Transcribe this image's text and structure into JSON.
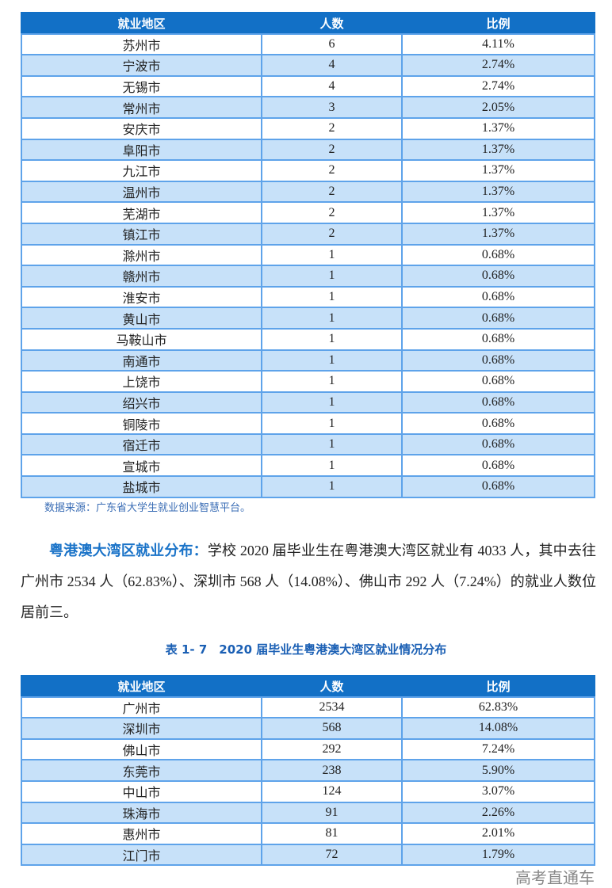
{
  "table1": {
    "headers": [
      "就业地区",
      "人数",
      "比例"
    ],
    "rows": [
      [
        "苏州市",
        "6",
        "4.11%"
      ],
      [
        "宁波市",
        "4",
        "2.74%"
      ],
      [
        "无锡市",
        "4",
        "2.74%"
      ],
      [
        "常州市",
        "3",
        "2.05%"
      ],
      [
        "安庆市",
        "2",
        "1.37%"
      ],
      [
        "阜阳市",
        "2",
        "1.37%"
      ],
      [
        "九江市",
        "2",
        "1.37%"
      ],
      [
        "温州市",
        "2",
        "1.37%"
      ],
      [
        "芜湖市",
        "2",
        "1.37%"
      ],
      [
        "镇江市",
        "2",
        "1.37%"
      ],
      [
        "滁州市",
        "1",
        "0.68%"
      ],
      [
        "赣州市",
        "1",
        "0.68%"
      ],
      [
        "淮安市",
        "1",
        "0.68%"
      ],
      [
        "黄山市",
        "1",
        "0.68%"
      ],
      [
        "马鞍山市",
        "1",
        "0.68%"
      ],
      [
        "南通市",
        "1",
        "0.68%"
      ],
      [
        "上饶市",
        "1",
        "0.68%"
      ],
      [
        "绍兴市",
        "1",
        "0.68%"
      ],
      [
        "铜陵市",
        "1",
        "0.68%"
      ],
      [
        "宿迁市",
        "1",
        "0.68%"
      ],
      [
        "宣城市",
        "1",
        "0.68%"
      ],
      [
        "盐城市",
        "1",
        "0.68%"
      ]
    ]
  },
  "source": "数据来源：广东省大学生就业创业智慧平台。",
  "paragraph": {
    "lead": "粤港澳大湾区就业分布：",
    "body": "学校 2020 届毕业生在粤港澳大湾区就业有 4033 人，其中去往广州市 2534 人（62.83%）、深圳市 568 人（14.08%）、佛山市 292 人（7.24%）的就业人数位居前三。"
  },
  "caption": "表 1- 7　2020 届毕业生粤港澳大湾区就业情况分布",
  "table2": {
    "headers": [
      "就业地区",
      "人数",
      "比例"
    ],
    "rows": [
      [
        "广州市",
        "2534",
        "62.83%"
      ],
      [
        "深圳市",
        "568",
        "14.08%"
      ],
      [
        "佛山市",
        "292",
        "7.24%"
      ],
      [
        "东莞市",
        "238",
        "5.90%"
      ],
      [
        "中山市",
        "124",
        "3.07%"
      ],
      [
        "珠海市",
        "91",
        "2.26%"
      ],
      [
        "惠州市",
        "81",
        "2.01%"
      ],
      [
        "江门市",
        "72",
        "1.79%"
      ]
    ]
  },
  "watermark": "高考直通车"
}
